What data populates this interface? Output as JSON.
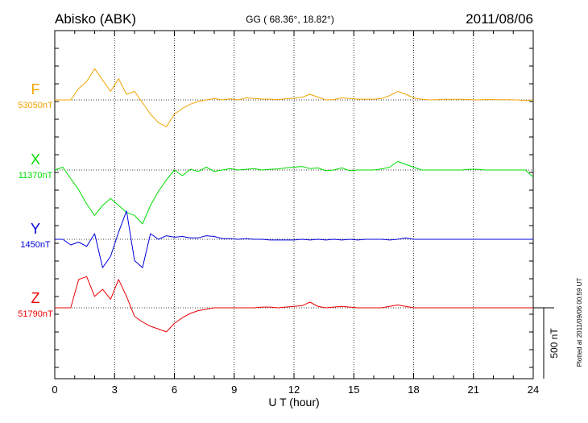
{
  "header": {
    "station": "Abisko (ABK)",
    "coords": "GG ( 68.36°,  18.82°)",
    "date": "2011/08/06"
  },
  "side_note": "Plotted at 2011/09/06 00:59 UT",
  "chart_data": {
    "type": "line",
    "xlabel": "U T (hour)",
    "xlim": [
      0,
      24
    ],
    "xticks": [
      "0",
      "3",
      "6",
      "9",
      "12",
      "15",
      "18",
      "21",
      "24"
    ],
    "scale_bar": {
      "label": "500 nT",
      "value_nT": 500
    },
    "series": [
      {
        "name": "F",
        "baseline": "53050nT",
        "color": "#f0a400",
        "values": [
          0,
          0,
          0,
          80,
          130,
          220,
          140,
          60,
          150,
          40,
          60,
          -20,
          -100,
          -160,
          -190,
          -100,
          -60,
          -30,
          -10,
          0,
          10,
          0,
          8,
          0,
          15,
          10,
          6,
          5,
          3,
          8,
          12,
          18,
          40,
          20,
          0,
          2,
          15,
          10,
          5,
          5,
          5,
          10,
          30,
          60,
          40,
          15,
          5,
          0,
          2,
          4,
          4,
          4,
          2,
          0,
          3,
          2,
          1,
          1,
          0,
          -5,
          0
        ]
      },
      {
        "name": "X",
        "baseline": "11370nT",
        "color": "#00dd00",
        "values": [
          0,
          20,
          -60,
          -140,
          -240,
          -320,
          -250,
          -200,
          -250,
          -300,
          -320,
          -380,
          -250,
          -150,
          -70,
          0,
          -40,
          5,
          -10,
          20,
          -10,
          0,
          10,
          0,
          5,
          10,
          0,
          5,
          8,
          15,
          20,
          25,
          10,
          15,
          -5,
          0,
          15,
          -5,
          0,
          0,
          0,
          8,
          20,
          60,
          40,
          20,
          0,
          0,
          0,
          0,
          0,
          0,
          5,
          5,
          0,
          0,
          0,
          0,
          0,
          0,
          -50
        ]
      },
      {
        "name": "Y",
        "baseline": "1450nT",
        "color": "#0000dd",
        "values": [
          0,
          0,
          -40,
          -20,
          -50,
          40,
          -200,
          -120,
          50,
          200,
          -150,
          -200,
          40,
          0,
          25,
          15,
          20,
          10,
          10,
          25,
          20,
          5,
          5,
          0,
          5,
          0,
          0,
          -5,
          -5,
          -5,
          -5,
          0,
          -5,
          0,
          -5,
          0,
          -5,
          0,
          -5,
          0,
          0,
          0,
          -5,
          0,
          10,
          0,
          0,
          0,
          0,
          0,
          0,
          0,
          0,
          0,
          0,
          0,
          0,
          0,
          0,
          0,
          0
        ]
      },
      {
        "name": "Z",
        "baseline": "51790nT",
        "color": "#ee0000",
        "values": [
          0,
          0,
          0,
          200,
          220,
          80,
          130,
          60,
          200,
          80,
          -60,
          -100,
          -130,
          -150,
          -170,
          -110,
          -70,
          -40,
          -20,
          -10,
          0,
          0,
          0,
          0,
          0,
          0,
          5,
          5,
          0,
          5,
          10,
          15,
          40,
          10,
          0,
          5,
          10,
          5,
          0,
          0,
          0,
          0,
          10,
          20,
          10,
          0,
          0,
          0,
          0,
          0,
          0,
          0,
          0,
          0,
          0,
          0,
          0,
          0,
          0,
          0,
          0
        ]
      }
    ]
  }
}
